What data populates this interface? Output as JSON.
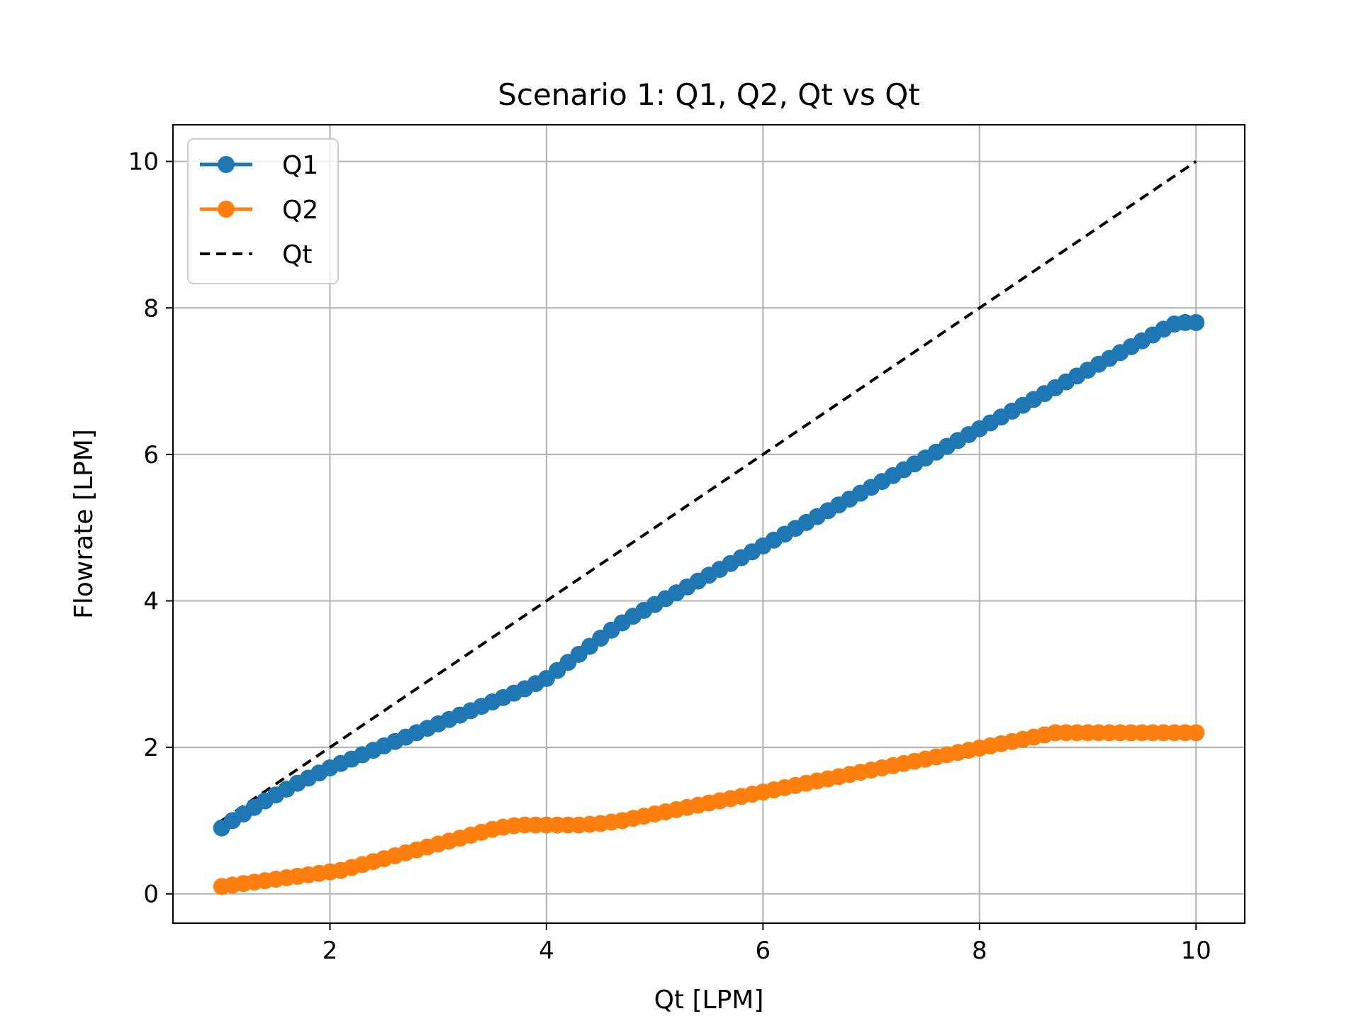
{
  "chart_data": {
    "type": "line",
    "title": "Scenario 1: Q1, Q2, Qt vs Qt",
    "xlabel": "Qt [LPM]",
    "ylabel": "Flowrate [LPM]",
    "xlim": [
      0.55,
      10.45
    ],
    "ylim": [
      -0.4,
      10.5
    ],
    "xticks": [
      2,
      4,
      6,
      8,
      10
    ],
    "yticks": [
      0,
      2,
      4,
      6,
      8,
      10
    ],
    "xtick_labels": [
      "2",
      "4",
      "6",
      "8",
      "10"
    ],
    "ytick_labels": [
      "0",
      "2",
      "4",
      "6",
      "8",
      "10"
    ],
    "grid": true,
    "legend_position": "top-left",
    "x_start": 1.0,
    "x_step": 0.1,
    "series": [
      {
        "name": "Q1",
        "style": "line-marker",
        "color": "#1f77b4",
        "values": [
          0.9,
          1.0,
          1.09,
          1.18,
          1.27,
          1.35,
          1.43,
          1.51,
          1.58,
          1.65,
          1.72,
          1.78,
          1.84,
          1.9,
          1.96,
          2.02,
          2.08,
          2.14,
          2.2,
          2.26,
          2.32,
          2.38,
          2.44,
          2.5,
          2.56,
          2.62,
          2.68,
          2.74,
          2.8,
          2.87,
          2.94,
          3.05,
          3.16,
          3.27,
          3.38,
          3.49,
          3.6,
          3.7,
          3.79,
          3.87,
          3.95,
          4.03,
          4.11,
          4.19,
          4.27,
          4.35,
          4.43,
          4.51,
          4.59,
          4.67,
          4.75,
          4.83,
          4.91,
          4.99,
          5.07,
          5.15,
          5.23,
          5.31,
          5.39,
          5.47,
          5.55,
          5.63,
          5.71,
          5.79,
          5.87,
          5.95,
          6.03,
          6.11,
          6.19,
          6.27,
          6.35,
          6.43,
          6.51,
          6.59,
          6.67,
          6.75,
          6.83,
          6.91,
          6.99,
          7.07,
          7.15,
          7.23,
          7.31,
          7.39,
          7.47,
          7.55,
          7.63,
          7.71,
          7.78,
          7.8,
          7.8
        ]
      },
      {
        "name": "Q2",
        "style": "line-marker",
        "color": "#ff7f0e",
        "values": [
          0.1,
          0.12,
          0.14,
          0.16,
          0.18,
          0.2,
          0.22,
          0.24,
          0.26,
          0.28,
          0.3,
          0.32,
          0.36,
          0.4,
          0.44,
          0.48,
          0.52,
          0.56,
          0.6,
          0.64,
          0.68,
          0.72,
          0.76,
          0.8,
          0.84,
          0.88,
          0.91,
          0.93,
          0.94,
          0.94,
          0.94,
          0.94,
          0.94,
          0.94,
          0.95,
          0.96,
          0.98,
          1.0,
          1.03,
          1.06,
          1.09,
          1.12,
          1.15,
          1.18,
          1.21,
          1.24,
          1.27,
          1.3,
          1.33,
          1.36,
          1.39,
          1.42,
          1.45,
          1.48,
          1.51,
          1.54,
          1.57,
          1.6,
          1.63,
          1.66,
          1.69,
          1.72,
          1.75,
          1.78,
          1.81,
          1.84,
          1.87,
          1.9,
          1.93,
          1.96,
          1.99,
          2.02,
          2.05,
          2.08,
          2.11,
          2.14,
          2.17,
          2.2,
          2.2,
          2.2,
          2.2,
          2.2,
          2.2,
          2.2,
          2.2,
          2.2,
          2.2,
          2.2,
          2.2,
          2.2,
          2.2
        ]
      },
      {
        "name": "Qt",
        "style": "dashed",
        "color": "#000000",
        "x": [
          1,
          10
        ],
        "values": [
          1,
          10
        ]
      }
    ]
  }
}
